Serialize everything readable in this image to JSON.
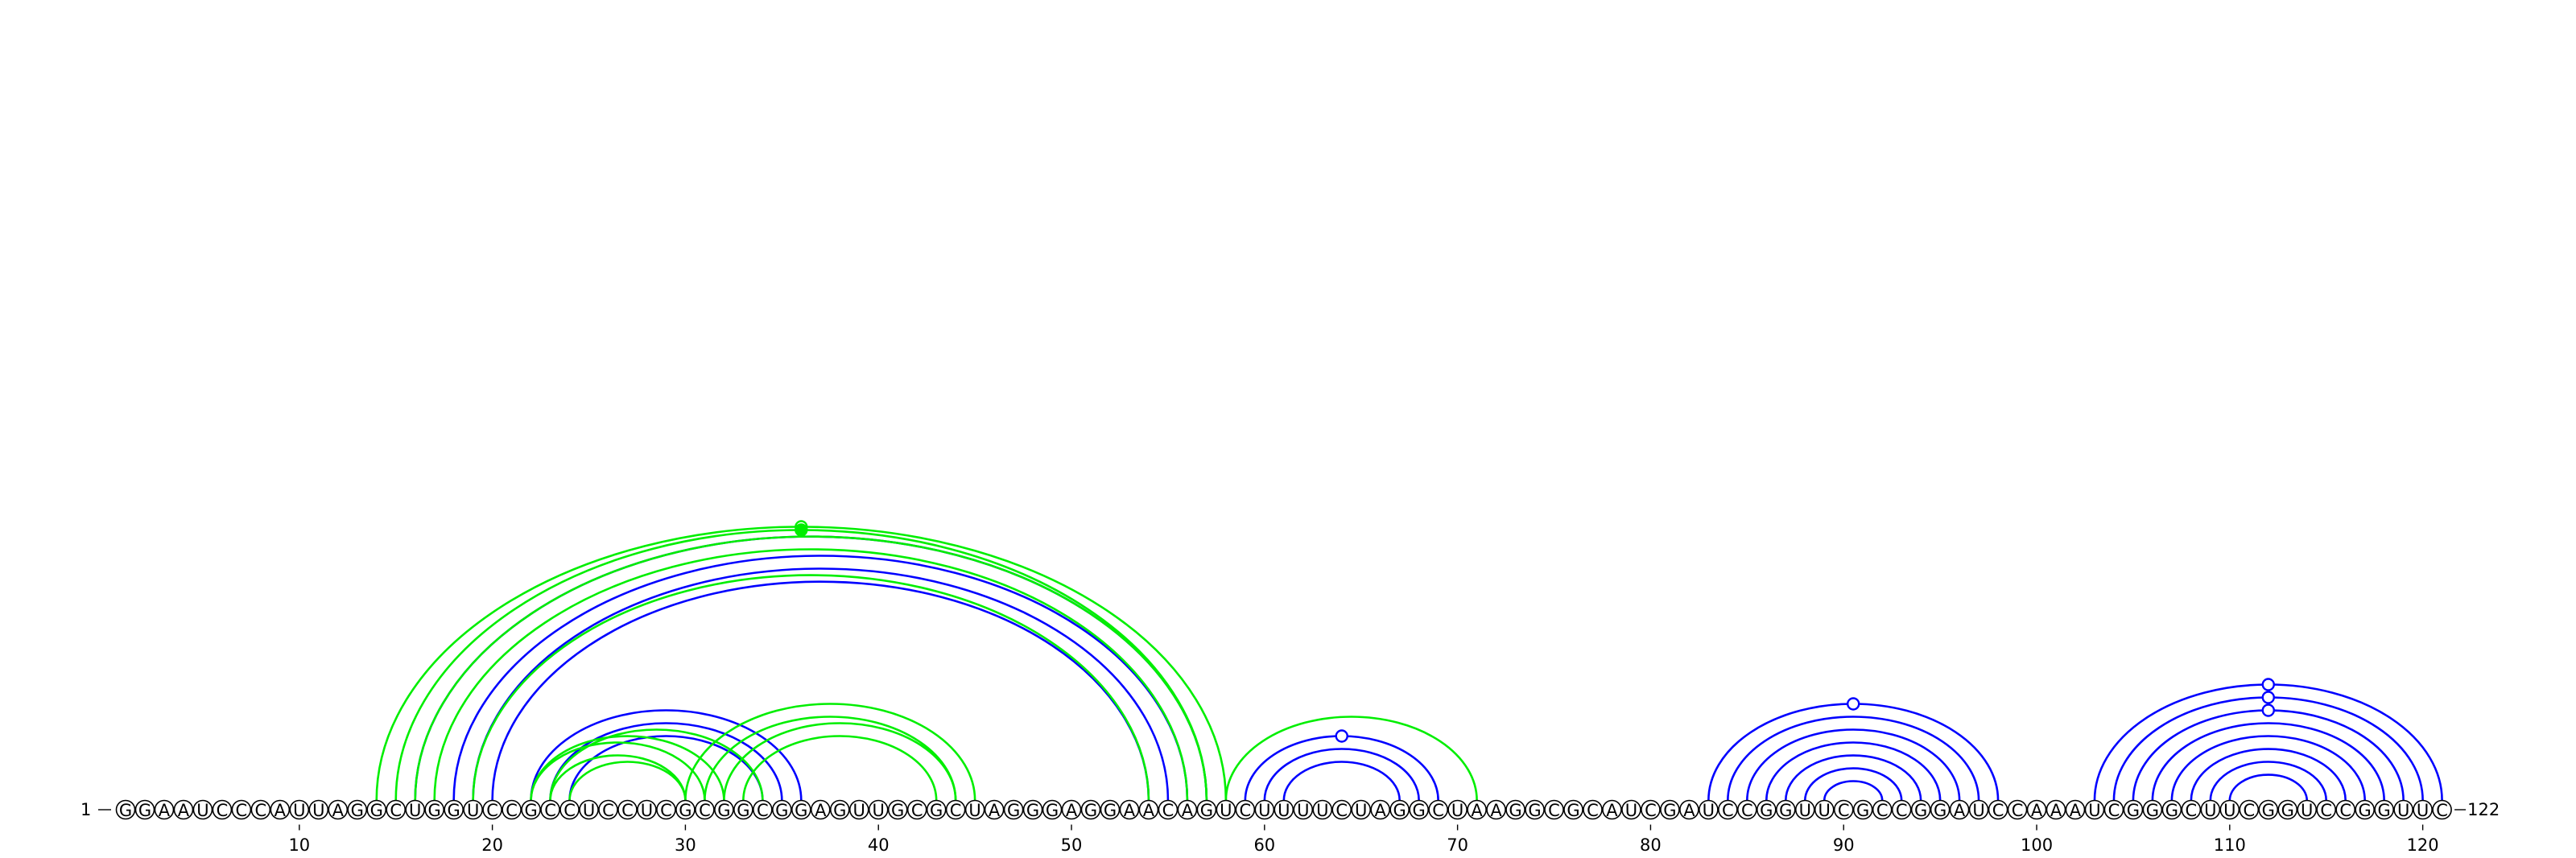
{
  "sequence": "GGAAUCCCAUUAGGCUGGUCCGCCUCCUCGCGGCGGAGUUGCGCUAGGGAGGAACAGUCUUUUCUAGGCUAAGGCGCAUCGAUCCGGUUCGCCGGAUCCAAAUCGGGCUUCGGUCCGGUUC",
  "start_label": "1",
  "end_label": "122",
  "ticks": [
    "10",
    "20",
    "30",
    "40",
    "50",
    "60",
    "70",
    "80",
    "90",
    "100",
    "110",
    "120"
  ],
  "colors": {
    "structure_a": "#0000ff",
    "structure_b": "#00ee00"
  },
  "structures": [
    {
      "color": "#0000ff",
      "pairs": [
        [
          18,
          56
        ],
        [
          19,
          55
        ],
        [
          20,
          54
        ],
        [
          16,
          57
        ],
        [
          22,
          36
        ],
        [
          23,
          35
        ],
        [
          24,
          34
        ],
        [
          59,
          69
        ],
        [
          60,
          68
        ],
        [
          61,
          67
        ],
        [
          83,
          98
        ],
        [
          84,
          97
        ],
        [
          85,
          96
        ],
        [
          86,
          95
        ],
        [
          87,
          94
        ],
        [
          88,
          93
        ],
        [
          89,
          92
        ],
        [
          103,
          121
        ],
        [
          104,
          120
        ],
        [
          105,
          119
        ],
        [
          106,
          118
        ],
        [
          107,
          117
        ],
        [
          108,
          116
        ],
        [
          109,
          115
        ],
        [
          110,
          114
        ]
      ],
      "markers": [
        {
          "position": 64,
          "filled": false
        },
        {
          "position": 90.5,
          "filled": false
        },
        {
          "position": 111.5,
          "filled": false
        },
        {
          "position": 111.5,
          "filled": false,
          "inner": 1
        },
        {
          "position": 111.5,
          "filled": false,
          "inner": 2
        }
      ]
    },
    {
      "color": "#00ee00",
      "pairs": [
        [
          14,
          58
        ],
        [
          15,
          57
        ],
        [
          16,
          57
        ],
        [
          17,
          56
        ],
        [
          19,
          54
        ],
        [
          22,
          31
        ],
        [
          23,
          30
        ],
        [
          24,
          30
        ],
        [
          22,
          32
        ],
        [
          23,
          34
        ],
        [
          30,
          45
        ],
        [
          31,
          44
        ],
        [
          32,
          44
        ],
        [
          33,
          43
        ],
        [
          58,
          71
        ]
      ],
      "markers": [
        {
          "position": 36,
          "filled": false
        },
        {
          "position": 36.5,
          "filled": true,
          "inner": 1
        }
      ]
    }
  ]
}
